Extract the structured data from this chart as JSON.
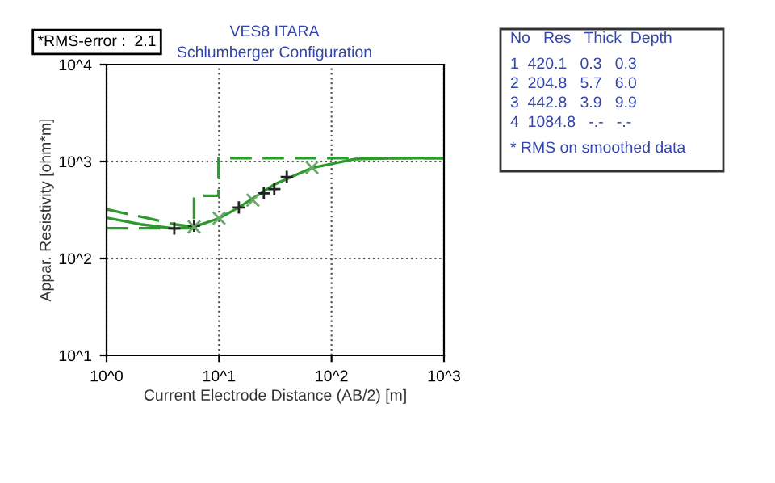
{
  "chart_data": {
    "type": "line",
    "title": "VES8 ITARA",
    "subtitle": "Schlumberger Configuration",
    "xlabel": "Current Electrode Distance (AB/2) [m]",
    "ylabel": "Appar. Resistivity [ohm*m]",
    "log": "xy",
    "grid": true,
    "xlim": [
      1,
      1000
    ],
    "xticks": [
      {
        "value": 1,
        "label": "10^0"
      },
      {
        "value": 10,
        "label": "10^1"
      },
      {
        "value": 100,
        "label": "10^2"
      },
      {
        "value": 1000,
        "label": "10^3"
      }
    ],
    "ylim": [
      10,
      10000
    ],
    "yticks": [
      {
        "value": 10,
        "label": "10^1"
      },
      {
        "value": 100,
        "label": "10^2"
      },
      {
        "value": 1000,
        "label": "10^3"
      },
      {
        "value": 10000,
        "label": "10^4"
      }
    ],
    "series": [
      {
        "type": "step",
        "color": "#2e9a2e",
        "line_style": "dashed",
        "x": [
          1,
          6.0,
          9.9,
          1000
        ],
        "values": [
          204.8,
          442.8,
          1084.8,
          1084.8
        ]
      },
      {
        "color": "#2e9a2e",
        "line_style": "solid",
        "x": [
          1,
          2,
          4,
          6,
          10,
          15,
          31,
          66,
          162,
          400,
          1000
        ],
        "values": [
          263,
          225,
          204,
          212,
          260,
          336,
          580,
          855,
          1060,
          1084,
          1084.8
        ]
      },
      {
        "color": "#2e9a2e",
        "line_style": "dashed",
        "x": [
          1,
          2,
          4,
          6
        ],
        "values": [
          322,
          270,
          225,
          212
        ]
      },
      {
        "type": "scatter",
        "color": "#222222",
        "marker": "cross",
        "x": [
          4.0,
          6.0,
          15,
          25,
          31,
          40
        ],
        "values": [
          204,
          218,
          336,
          470,
          520,
          694
        ]
      },
      {
        "type": "scatter",
        "color": "#6aa86a",
        "marker": "x",
        "x": [
          6.0,
          10,
          20,
          67
        ],
        "values": [
          212,
          260,
          400,
          866
        ]
      }
    ],
    "annotations": [
      "*RMS-error :  2.1",
      "No   Res   Thick  Depth",
      "1  420.1   0.3   0.3",
      "2  204.8   5.7   6.0",
      "3  442.8   3.9   9.9",
      "4  1084.8   -.-   -.-",
      "* RMS on smoothed data"
    ]
  }
}
